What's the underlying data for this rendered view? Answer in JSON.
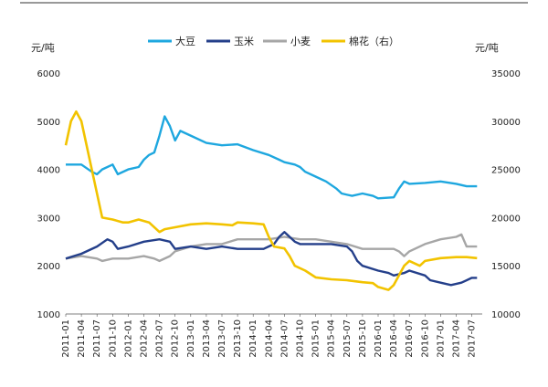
{
  "chart_data": {
    "type": "line",
    "title": "",
    "y_left_label": "元/吨",
    "y_right_label": "元/吨",
    "y_left_lim": [
      1000,
      6000
    ],
    "y_left_ticks": [
      "1000",
      "2000",
      "3000",
      "4000",
      "5000",
      "6000"
    ],
    "y_right_lim": [
      10000,
      35000
    ],
    "y_right_ticks": [
      "10000",
      "15000",
      "20000",
      "25000",
      "30000",
      "35000"
    ],
    "x_ticks": [
      "2011-01",
      "2011-04",
      "2011-07",
      "2011-10",
      "2012-01",
      "2012-04",
      "2012-07",
      "2012-10",
      "2013-01",
      "2013-04",
      "2013-07",
      "2013-10",
      "2014-01",
      "2014-04",
      "2014-07",
      "2014-10",
      "2015-01",
      "2015-04",
      "2015-07",
      "2015-10",
      "2016-01",
      "2016-04",
      "2016-07",
      "2016-10",
      "2017-01",
      "2017-04",
      "2017-07"
    ],
    "legend_position": "top",
    "grid": false,
    "series": [
      {
        "name": "大豆",
        "axis": "left",
        "color": "#1ea7df",
        "points": [
          [
            "2011-01",
            4100
          ],
          [
            "2011-04",
            4100
          ],
          [
            "2011-06",
            3950
          ],
          [
            "2011-07",
            3900
          ],
          [
            "2011-08",
            4000
          ],
          [
            "2011-10",
            4100
          ],
          [
            "2011-11",
            3900
          ],
          [
            "2012-01",
            4000
          ],
          [
            "2012-03",
            4050
          ],
          [
            "2012-04",
            4200
          ],
          [
            "2012-05",
            4300
          ],
          [
            "2012-06",
            4350
          ],
          [
            "2012-07",
            4700
          ],
          [
            "2012-08",
            5100
          ],
          [
            "2012-09",
            4900
          ],
          [
            "2012-10",
            4600
          ],
          [
            "2012-11",
            4800
          ],
          [
            "2013-01",
            4700
          ],
          [
            "2013-04",
            4550
          ],
          [
            "2013-07",
            4500
          ],
          [
            "2013-10",
            4520
          ],
          [
            "2014-01",
            4400
          ],
          [
            "2014-04",
            4300
          ],
          [
            "2014-06",
            4200
          ],
          [
            "2014-07",
            4150
          ],
          [
            "2014-09",
            4100
          ],
          [
            "2014-10",
            4050
          ],
          [
            "2014-11",
            3950
          ],
          [
            "2015-01",
            3850
          ],
          [
            "2015-03",
            3750
          ],
          [
            "2015-05",
            3600
          ],
          [
            "2015-06",
            3500
          ],
          [
            "2015-08",
            3450
          ],
          [
            "2015-10",
            3500
          ],
          [
            "2015-12",
            3450
          ],
          [
            "2016-01",
            3400
          ],
          [
            "2016-04",
            3420
          ],
          [
            "2016-05",
            3600
          ],
          [
            "2016-06",
            3750
          ],
          [
            "2016-07",
            3700
          ],
          [
            "2016-10",
            3720
          ],
          [
            "2017-01",
            3750
          ],
          [
            "2017-04",
            3700
          ],
          [
            "2017-06",
            3650
          ],
          [
            "2017-08",
            3650
          ]
        ]
      },
      {
        "name": "玉米",
        "axis": "left",
        "color": "#243f8a",
        "points": [
          [
            "2011-01",
            2150
          ],
          [
            "2011-04",
            2250
          ],
          [
            "2011-07",
            2400
          ],
          [
            "2011-09",
            2550
          ],
          [
            "2011-10",
            2500
          ],
          [
            "2011-11",
            2350
          ],
          [
            "2012-01",
            2400
          ],
          [
            "2012-04",
            2500
          ],
          [
            "2012-07",
            2550
          ],
          [
            "2012-09",
            2500
          ],
          [
            "2012-10",
            2350
          ],
          [
            "2013-01",
            2400
          ],
          [
            "2013-04",
            2350
          ],
          [
            "2013-07",
            2400
          ],
          [
            "2013-10",
            2350
          ],
          [
            "2014-01",
            2350
          ],
          [
            "2014-03",
            2350
          ],
          [
            "2014-05",
            2450
          ],
          [
            "2014-06",
            2600
          ],
          [
            "2014-07",
            2700
          ],
          [
            "2014-08",
            2600
          ],
          [
            "2014-09",
            2500
          ],
          [
            "2014-10",
            2450
          ],
          [
            "2015-01",
            2450
          ],
          [
            "2015-04",
            2450
          ],
          [
            "2015-07",
            2400
          ],
          [
            "2015-08",
            2300
          ],
          [
            "2015-09",
            2100
          ],
          [
            "2015-10",
            2000
          ],
          [
            "2016-01",
            1900
          ],
          [
            "2016-03",
            1850
          ],
          [
            "2016-04",
            1800
          ],
          [
            "2016-06",
            1850
          ],
          [
            "2016-07",
            1900
          ],
          [
            "2016-10",
            1800
          ],
          [
            "2016-11",
            1700
          ],
          [
            "2017-01",
            1650
          ],
          [
            "2017-03",
            1600
          ],
          [
            "2017-05",
            1650
          ],
          [
            "2017-07",
            1750
          ],
          [
            "2017-08",
            1750
          ]
        ]
      },
      {
        "name": "小麦",
        "axis": "left",
        "color": "#a6a6a6",
        "points": [
          [
            "2011-01",
            2150
          ],
          [
            "2011-04",
            2200
          ],
          [
            "2011-07",
            2150
          ],
          [
            "2011-08",
            2100
          ],
          [
            "2011-10",
            2150
          ],
          [
            "2012-01",
            2150
          ],
          [
            "2012-04",
            2200
          ],
          [
            "2012-06",
            2150
          ],
          [
            "2012-07",
            2100
          ],
          [
            "2012-09",
            2200
          ],
          [
            "2012-10",
            2300
          ],
          [
            "2013-01",
            2400
          ],
          [
            "2013-04",
            2450
          ],
          [
            "2013-07",
            2450
          ],
          [
            "2013-10",
            2550
          ],
          [
            "2014-01",
            2550
          ],
          [
            "2014-04",
            2550
          ],
          [
            "2014-07",
            2600
          ],
          [
            "2014-10",
            2550
          ],
          [
            "2015-01",
            2550
          ],
          [
            "2015-04",
            2500
          ],
          [
            "2015-07",
            2450
          ],
          [
            "2015-10",
            2350
          ],
          [
            "2016-01",
            2350
          ],
          [
            "2016-04",
            2350
          ],
          [
            "2016-05",
            2300
          ],
          [
            "2016-06",
            2200
          ],
          [
            "2016-07",
            2300
          ],
          [
            "2016-10",
            2450
          ],
          [
            "2017-01",
            2550
          ],
          [
            "2017-04",
            2600
          ],
          [
            "2017-05",
            2650
          ],
          [
            "2017-06",
            2400
          ],
          [
            "2017-08",
            2400
          ]
        ]
      },
      {
        "name": "棉花（右）",
        "axis": "right",
        "color": "#f2c300",
        "points": [
          [
            "2011-01",
            27500
          ],
          [
            "2011-02",
            30000
          ],
          [
            "2011-03",
            31000
          ],
          [
            "2011-04",
            30000
          ],
          [
            "2011-05",
            27500
          ],
          [
            "2011-06",
            25000
          ],
          [
            "2011-07",
            22500
          ],
          [
            "2011-08",
            20000
          ],
          [
            "2011-10",
            19800
          ],
          [
            "2011-12",
            19500
          ],
          [
            "2012-01",
            19500
          ],
          [
            "2012-03",
            19800
          ],
          [
            "2012-05",
            19500
          ],
          [
            "2012-07",
            18500
          ],
          [
            "2012-08",
            18800
          ],
          [
            "2012-10",
            19000
          ],
          [
            "2013-01",
            19300
          ],
          [
            "2013-04",
            19400
          ],
          [
            "2013-07",
            19300
          ],
          [
            "2013-09",
            19200
          ],
          [
            "2013-10",
            19500
          ],
          [
            "2014-01",
            19400
          ],
          [
            "2014-03",
            19300
          ],
          [
            "2014-04",
            18000
          ],
          [
            "2014-05",
            17000
          ],
          [
            "2014-07",
            16800
          ],
          [
            "2014-08",
            16000
          ],
          [
            "2014-09",
            15000
          ],
          [
            "2014-11",
            14500
          ],
          [
            "2015-01",
            13800
          ],
          [
            "2015-04",
            13600
          ],
          [
            "2015-07",
            13500
          ],
          [
            "2015-10",
            13300
          ],
          [
            "2015-12",
            13200
          ],
          [
            "2016-01",
            12800
          ],
          [
            "2016-03",
            12500
          ],
          [
            "2016-04",
            13000
          ],
          [
            "2016-05",
            14000
          ],
          [
            "2016-06",
            15000
          ],
          [
            "2016-07",
            15500
          ],
          [
            "2016-09",
            15000
          ],
          [
            "2016-10",
            15500
          ],
          [
            "2017-01",
            15800
          ],
          [
            "2017-04",
            15900
          ],
          [
            "2017-06",
            15900
          ],
          [
            "2017-08",
            15800
          ]
        ]
      }
    ]
  }
}
